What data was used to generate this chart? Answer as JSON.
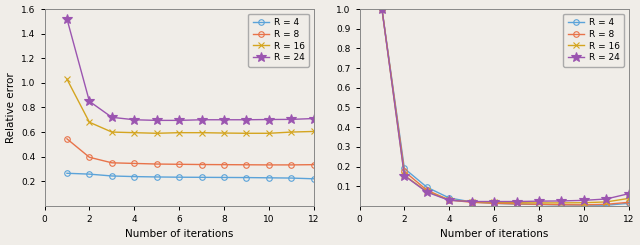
{
  "iterations": [
    1,
    2,
    3,
    4,
    5,
    6,
    7,
    8,
    9,
    10,
    11,
    12
  ],
  "left_R4": [
    0.265,
    0.258,
    0.243,
    0.238,
    0.235,
    0.233,
    0.232,
    0.231,
    0.23,
    0.228,
    0.226,
    0.22
  ],
  "left_R8": [
    0.545,
    0.395,
    0.35,
    0.345,
    0.34,
    0.338,
    0.336,
    0.335,
    0.334,
    0.333,
    0.333,
    0.335
  ],
  "left_R16": [
    1.03,
    0.68,
    0.6,
    0.595,
    0.59,
    0.595,
    0.595,
    0.592,
    0.59,
    0.59,
    0.6,
    0.605
  ],
  "left_R24": [
    1.52,
    0.85,
    0.72,
    0.7,
    0.695,
    0.695,
    0.7,
    0.7,
    0.7,
    0.702,
    0.703,
    0.71
  ],
  "right_R4": [
    1.0,
    0.19,
    0.095,
    0.04,
    0.02,
    0.013,
    0.009,
    0.007,
    0.005,
    0.004,
    0.003,
    0.013
  ],
  "right_R8": [
    1.0,
    0.175,
    0.08,
    0.03,
    0.018,
    0.013,
    0.01,
    0.008,
    0.006,
    0.005,
    0.008,
    0.018
  ],
  "right_R16": [
    1.0,
    0.155,
    0.073,
    0.03,
    0.022,
    0.018,
    0.016,
    0.015,
    0.015,
    0.016,
    0.02,
    0.038
  ],
  "right_R24": [
    1.0,
    0.153,
    0.07,
    0.028,
    0.022,
    0.022,
    0.022,
    0.024,
    0.025,
    0.028,
    0.035,
    0.062
  ],
  "colors": [
    "#5BA3D9",
    "#E8734A",
    "#D4A520",
    "#9B55B0"
  ],
  "labels": [
    "R = 4",
    "R = 8",
    "R = 16",
    "R = 24"
  ],
  "left_ylim": [
    0.0,
    1.6
  ],
  "left_yticks": [
    0.2,
    0.4,
    0.6,
    0.8,
    1.0,
    1.2,
    1.4,
    1.6
  ],
  "right_ylim": [
    0.0,
    1.0
  ],
  "right_yticks": [
    0.1,
    0.2,
    0.3,
    0.4,
    0.5,
    0.6,
    0.7,
    0.8,
    0.9,
    1.0
  ],
  "xlim": [
    0,
    12
  ],
  "xticks": [
    0,
    2,
    4,
    6,
    8,
    10,
    12
  ],
  "xlabel": "Number of iterations",
  "left_ylabel": "Relative error",
  "bg_color": "#F0EDE8",
  "fig_bg_color": "#F0EDE8"
}
